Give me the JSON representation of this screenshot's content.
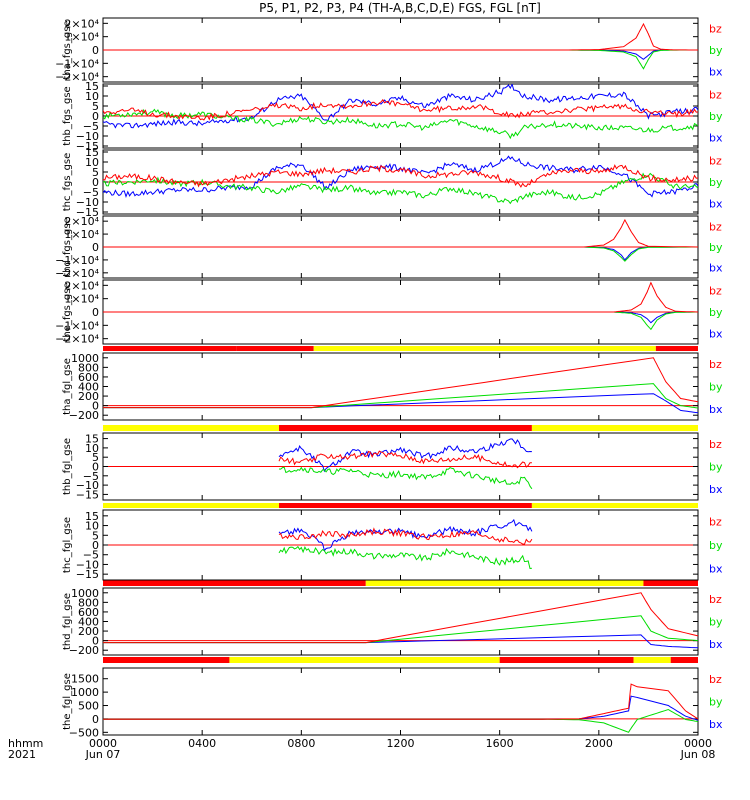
{
  "title": "P5, P1, P2, P3, P4 (TH-A,B,C,D,E) FGS, FGL [nT]",
  "colors": {
    "bx": "#0000ff",
    "by": "#00dd00",
    "bz": "#ff0000",
    "bar_yellow": "#ffff00",
    "bar_red": "#ff0000",
    "zero_line": "#ff0000"
  },
  "legend": [
    "bz",
    "by",
    "bx"
  ],
  "time_axis": {
    "label_line1": "hhmm",
    "label_line2": "2021",
    "range_hours": [
      0,
      24
    ],
    "ticks": [
      {
        "hour": 0,
        "label": "0000",
        "sub": "Jun 07"
      },
      {
        "hour": 4,
        "label": "0400",
        "sub": ""
      },
      {
        "hour": 8,
        "label": "0800",
        "sub": ""
      },
      {
        "hour": 12,
        "label": "1200",
        "sub": ""
      },
      {
        "hour": 16,
        "label": "1600",
        "sub": ""
      },
      {
        "hour": 20,
        "label": "2000",
        "sub": ""
      },
      {
        "hour": 24,
        "label": "0000",
        "sub": "Jun 08"
      }
    ]
  },
  "chart_data": [
    {
      "type": "line",
      "ylabel": "tha_fgs_gse",
      "ylim": [
        -24000,
        24000
      ],
      "yticks": [
        {
          "v": 20000,
          "l": "2×10⁴"
        },
        {
          "v": 10000,
          "l": "1×10⁴"
        },
        {
          "v": 0,
          "l": "0"
        },
        {
          "v": -10000,
          "l": "−1×10⁴"
        },
        {
          "v": -20000,
          "l": "−2×10⁴"
        }
      ],
      "x": [
        0,
        18.6,
        20.0,
        21.0,
        21.5,
        21.8,
        22.0,
        22.2,
        22.5,
        23.0,
        24.0
      ],
      "series": [
        {
          "name": "bz",
          "values": [
            0,
            0,
            300,
            2500,
            9000,
            19500,
            12000,
            3000,
            600,
            100,
            0
          ]
        },
        {
          "name": "by",
          "values": [
            0,
            0,
            -300,
            -1500,
            -5000,
            -14000,
            -7000,
            -1500,
            -300,
            -50,
            0
          ]
        },
        {
          "name": "bx",
          "values": [
            0,
            0,
            -100,
            -800,
            -3000,
            -7000,
            -4000,
            -800,
            -100,
            0,
            0
          ]
        }
      ]
    },
    {
      "type": "line",
      "ylabel": "thb_fgs_gse",
      "ylim": [
        -16,
        16
      ],
      "yticks": [
        {
          "v": 15,
          "l": "15"
        },
        {
          "v": 10,
          "l": "10"
        },
        {
          "v": 5,
          "l": "5"
        },
        {
          "v": 0,
          "l": "0"
        },
        {
          "v": -5,
          "l": "−5"
        },
        {
          "v": -10,
          "l": "−10"
        },
        {
          "v": -15,
          "l": "−15"
        }
      ],
      "x": [
        0,
        1,
        2,
        3,
        4,
        5,
        6,
        7,
        8,
        9,
        10,
        11,
        12,
        13,
        14,
        15,
        16,
        16.5,
        17,
        18,
        19,
        20,
        21,
        22,
        23,
        24
      ],
      "series": [
        {
          "name": "bz",
          "values": [
            2,
            3,
            1,
            0,
            -1,
            1,
            3,
            5,
            4,
            6,
            5,
            7,
            6,
            3,
            4,
            5,
            2,
            0,
            1,
            2,
            3,
            4,
            5,
            2,
            1,
            2
          ]
        },
        {
          "name": "by",
          "values": [
            0,
            1,
            2,
            0,
            1,
            -1,
            -2,
            -4,
            -1,
            -3,
            -2,
            -5,
            -4,
            -6,
            -2,
            -5,
            -8,
            -10,
            -6,
            -4,
            -5,
            -6,
            -6,
            -7,
            -6,
            -5
          ]
        },
        {
          "name": "bx",
          "values": [
            -4,
            -5,
            -4,
            -3,
            -4,
            -2,
            -1,
            8,
            10,
            -2,
            8,
            6,
            9,
            5,
            10,
            8,
            12,
            15,
            10,
            8,
            9,
            10,
            11,
            0,
            2,
            3
          ]
        }
      ]
    },
    {
      "type": "line",
      "ylabel": "thc_fgs_gse",
      "ylim": [
        -16,
        16
      ],
      "yticks": [
        {
          "v": 15,
          "l": "15"
        },
        {
          "v": 10,
          "l": "10"
        },
        {
          "v": 5,
          "l": "5"
        },
        {
          "v": 0,
          "l": "0"
        },
        {
          "v": -5,
          "l": "−5"
        },
        {
          "v": -10,
          "l": "−10"
        },
        {
          "v": -15,
          "l": "−15"
        }
      ],
      "x": [
        0,
        1,
        2,
        3,
        4,
        5,
        6,
        7,
        8,
        9,
        10,
        11,
        12,
        13,
        14,
        15,
        16,
        16.5,
        17,
        18,
        19,
        20,
        21,
        22,
        23,
        24
      ],
      "series": [
        {
          "name": "bz",
          "values": [
            2,
            3,
            2,
            0,
            -1,
            1,
            3,
            5,
            4,
            6,
            5,
            7,
            6,
            3,
            4,
            5,
            2,
            0,
            -2,
            4,
            6,
            5,
            8,
            2,
            1,
            2
          ]
        },
        {
          "name": "by",
          "values": [
            -1,
            0,
            1,
            -1,
            0,
            -2,
            -3,
            -5,
            -2,
            -4,
            -3,
            -6,
            -5,
            -7,
            -3,
            -6,
            -9,
            -10,
            -7,
            -5,
            -8,
            -6,
            0,
            4,
            -2,
            -3
          ]
        },
        {
          "name": "bx",
          "values": [
            -5,
            -6,
            -5,
            -4,
            -4,
            -3,
            -2,
            7,
            9,
            -3,
            6,
            8,
            7,
            4,
            9,
            6,
            10,
            12,
            9,
            7,
            6,
            8,
            4,
            -6,
            -5,
            -2
          ]
        }
      ]
    },
    {
      "type": "line",
      "ylabel": "thd_fgs_gse",
      "ylim": [
        -24000,
        24000
      ],
      "yticks": [
        {
          "v": 20000,
          "l": "2×10⁴"
        },
        {
          "v": 10000,
          "l": "1×10⁴"
        },
        {
          "v": 0,
          "l": "0"
        },
        {
          "v": -10000,
          "l": "−1×10⁴"
        },
        {
          "v": -20000,
          "l": "−2×10⁴"
        }
      ],
      "x": [
        0,
        19.4,
        20.2,
        20.6,
        20.9,
        21.05,
        21.3,
        21.6,
        22.0,
        24.0
      ],
      "series": [
        {
          "name": "bz",
          "values": [
            0,
            0,
            1500,
            6000,
            15000,
            21000,
            12000,
            3500,
            500,
            0
          ]
        },
        {
          "name": "by",
          "values": [
            0,
            0,
            -800,
            -3000,
            -8000,
            -11000,
            -6000,
            -1500,
            -200,
            0
          ]
        },
        {
          "name": "bx",
          "values": [
            0,
            0,
            -500,
            -2000,
            -6000,
            -10000,
            -4500,
            -1000,
            -100,
            0
          ]
        }
      ]
    },
    {
      "type": "line",
      "ylabel": "the_fgs_gse",
      "ylim": [
        -24000,
        24000
      ],
      "yticks": [
        {
          "v": 20000,
          "l": "2×10⁴"
        },
        {
          "v": 10000,
          "l": "1×10⁴"
        },
        {
          "v": 0,
          "l": "0"
        },
        {
          "v": -10000,
          "l": "−1×10⁴"
        },
        {
          "v": -20000,
          "l": "−2×10⁴"
        }
      ],
      "x": [
        0,
        20.6,
        21.3,
        21.7,
        21.95,
        22.1,
        22.35,
        22.7,
        23.1,
        24.0
      ],
      "series": [
        {
          "name": "bz",
          "values": [
            0,
            0,
            1500,
            6000,
            15000,
            22000,
            12000,
            3500,
            500,
            0
          ]
        },
        {
          "name": "by",
          "values": [
            0,
            0,
            -1000,
            -4000,
            -10000,
            -13000,
            -6000,
            -1500,
            -200,
            0
          ]
        },
        {
          "name": "bx",
          "values": [
            0,
            0,
            -500,
            -2000,
            -5000,
            -8000,
            -4000,
            -1000,
            -100,
            0
          ]
        }
      ]
    },
    {
      "type": "line",
      "ylabel": "tha_fgl_gse",
      "ylim": [
        -300,
        1100
      ],
      "yticks": [
        {
          "v": 1000,
          "l": "1000"
        },
        {
          "v": 800,
          "l": "800"
        },
        {
          "v": 600,
          "l": "600"
        },
        {
          "v": 400,
          "l": "400"
        },
        {
          "v": 200,
          "l": "200"
        },
        {
          "v": 0,
          "l": "0"
        },
        {
          "v": -200,
          "l": "−200"
        }
      ],
      "x": [
        0,
        8.4,
        22.2,
        22.7,
        23.3,
        24
      ],
      "series": [
        {
          "name": "bz",
          "values": [
            -40,
            -40,
            1000,
            500,
            150,
            80
          ]
        },
        {
          "name": "by",
          "values": [
            -40,
            -40,
            460,
            150,
            0,
            -50
          ]
        },
        {
          "name": "bx",
          "values": [
            -40,
            -40,
            250,
            100,
            -100,
            -150
          ]
        }
      ]
    },
    {
      "type": "line",
      "ylabel": "thb_fgl_gse",
      "ylim": [
        -18,
        18
      ],
      "yticks": [
        {
          "v": 15,
          "l": "15"
        },
        {
          "v": 10,
          "l": "10"
        },
        {
          "v": 5,
          "l": "5"
        },
        {
          "v": 0,
          "l": "0"
        },
        {
          "v": -5,
          "l": "−5"
        },
        {
          "v": -10,
          "l": "−10"
        },
        {
          "v": -15,
          "l": "−15"
        }
      ],
      "x": [
        7.1,
        8,
        9,
        10,
        11,
        12,
        13,
        14,
        15,
        16,
        16.5,
        17,
        17.3
      ],
      "series": [
        {
          "name": "bz",
          "values": [
            4,
            2,
            6,
            5,
            7,
            6,
            3,
            4,
            5,
            2,
            0,
            1,
            2
          ]
        },
        {
          "name": "by",
          "values": [
            -2,
            -1,
            -3,
            -2,
            -5,
            -4,
            -6,
            -2,
            -5,
            -8,
            -10,
            -6,
            -12
          ]
        },
        {
          "name": "bx",
          "values": [
            6,
            10,
            -2,
            8,
            6,
            9,
            5,
            10,
            8,
            12,
            15,
            10,
            8
          ]
        }
      ]
    },
    {
      "type": "line",
      "ylabel": "thc_fgl_gse",
      "ylim": [
        -18,
        18
      ],
      "yticks": [
        {
          "v": 15,
          "l": "15"
        },
        {
          "v": 10,
          "l": "10"
        },
        {
          "v": 5,
          "l": "5"
        },
        {
          "v": 0,
          "l": "0"
        },
        {
          "v": -5,
          "l": "−5"
        },
        {
          "v": -10,
          "l": "−10"
        },
        {
          "v": -15,
          "l": "−15"
        }
      ],
      "x": [
        7.1,
        8,
        9,
        10,
        11,
        12,
        13,
        14,
        15,
        16,
        16.5,
        17,
        17.3
      ],
      "series": [
        {
          "name": "bz",
          "values": [
            5,
            4,
            6,
            5,
            7,
            6,
            4,
            5,
            6,
            3,
            2,
            1,
            3
          ]
        },
        {
          "name": "by",
          "values": [
            -3,
            -2,
            -4,
            -3,
            -6,
            -5,
            -7,
            -3,
            -6,
            -9,
            -8,
            -7,
            -12
          ]
        },
        {
          "name": "bx",
          "values": [
            6,
            8,
            -2,
            6,
            7,
            7,
            4,
            8,
            6,
            10,
            12,
            9,
            7
          ]
        }
      ]
    },
    {
      "type": "line",
      "ylabel": "thd_fgl_gse",
      "ylim": [
        -300,
        1100
      ],
      "yticks": [
        {
          "v": 1000,
          "l": "1000"
        },
        {
          "v": 800,
          "l": "800"
        },
        {
          "v": 600,
          "l": "600"
        },
        {
          "v": 400,
          "l": "400"
        },
        {
          "v": 200,
          "l": "200"
        },
        {
          "v": 0,
          "l": "0"
        },
        {
          "v": -200,
          "l": "−200"
        }
      ],
      "x": [
        0,
        10.6,
        21.7,
        22.1,
        22.8,
        24
      ],
      "series": [
        {
          "name": "bz",
          "values": [
            -40,
            -40,
            1000,
            650,
            250,
            100
          ]
        },
        {
          "name": "by",
          "values": [
            -40,
            -40,
            520,
            200,
            50,
            0
          ]
        },
        {
          "name": "bx",
          "values": [
            -40,
            -40,
            120,
            -80,
            -120,
            -150
          ]
        }
      ]
    },
    {
      "type": "line",
      "ylabel": "the_fgl_gse",
      "ylim": [
        -600,
        1900
      ],
      "yticks": [
        {
          "v": 1500,
          "l": "1500"
        },
        {
          "v": 1000,
          "l": "1000"
        },
        {
          "v": 500,
          "l": "500"
        },
        {
          "v": 0,
          "l": "0"
        },
        {
          "v": -500,
          "l": "−500"
        }
      ],
      "x": [
        0,
        17.5,
        19.2,
        20.2,
        21.2,
        21.3,
        21.55,
        22.8,
        23.5,
        24
      ],
      "series": [
        {
          "name": "bz",
          "values": [
            -10,
            -10,
            0,
            200,
            400,
            1300,
            1200,
            1050,
            300,
            0
          ]
        },
        {
          "name": "by",
          "values": [
            -10,
            -10,
            -30,
            -150,
            -500,
            -350,
            -20,
            350,
            -20,
            -100
          ]
        },
        {
          "name": "bx",
          "values": [
            -10,
            -10,
            0,
            100,
            300,
            850,
            800,
            500,
            100,
            -50
          ]
        }
      ]
    }
  ],
  "mode_bars": [
    {
      "after_panel": 5,
      "segments": [
        {
          "start": 0,
          "end": 5.4,
          "color": "red"
        },
        {
          "start": 5.4,
          "end": 8.5,
          "color": "red"
        },
        {
          "start": 8.5,
          "end": 22.3,
          "color": "yellow"
        },
        {
          "start": 22.3,
          "end": 24,
          "color": "red"
        }
      ]
    },
    {
      "after_panel": 6,
      "segments": [
        {
          "start": 0,
          "end": 7.1,
          "color": "yellow"
        },
        {
          "start": 7.1,
          "end": 17.3,
          "color": "red"
        },
        {
          "start": 17.3,
          "end": 24,
          "color": "yellow"
        }
      ]
    },
    {
      "after_panel": 7,
      "segments": [
        {
          "start": 0,
          "end": 7.1,
          "color": "yellow"
        },
        {
          "start": 7.1,
          "end": 17.3,
          "color": "red"
        },
        {
          "start": 17.3,
          "end": 24,
          "color": "yellow"
        }
      ]
    },
    {
      "after_panel": 8,
      "segments": [
        {
          "start": 0,
          "end": 10.6,
          "color": "red"
        },
        {
          "start": 10.6,
          "end": 21.8,
          "color": "yellow"
        },
        {
          "start": 21.8,
          "end": 24,
          "color": "red"
        }
      ]
    },
    {
      "after_panel": 9,
      "segments": [
        {
          "start": 0,
          "end": 5.1,
          "color": "red"
        },
        {
          "start": 5.1,
          "end": 16,
          "color": "yellow"
        },
        {
          "start": 16,
          "end": 21.4,
          "color": "red"
        },
        {
          "start": 21.4,
          "end": 22.9,
          "color": "yellow"
        },
        {
          "start": 22.9,
          "end": 24,
          "color": "red"
        }
      ]
    }
  ]
}
